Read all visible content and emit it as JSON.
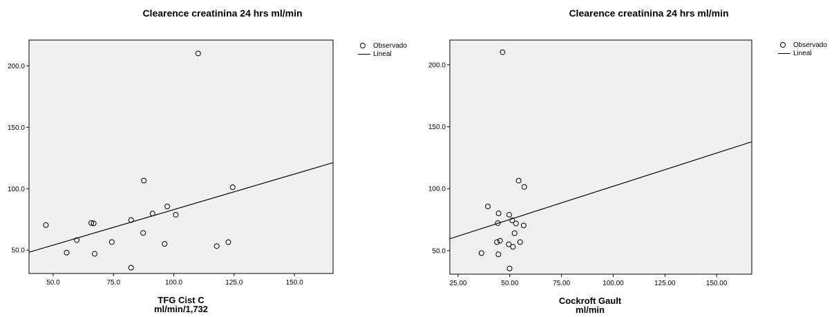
{
  "chart_data": [
    {
      "type": "scatter",
      "title": "Clearence  creatinina 24 hrs ml/min",
      "xlabel": [
        "TFG Cist C",
        "ml/min/1,732"
      ],
      "ylabel": "",
      "xlim": [
        40,
        166
      ],
      "ylim": [
        31,
        221
      ],
      "xticks": [
        50,
        75,
        100,
        125,
        150
      ],
      "xtick_labels": [
        "50.0",
        "75.0",
        "100.0",
        "125.0",
        "150.0"
      ],
      "yticks": [
        50,
        100,
        150,
        200
      ],
      "ytick_labels": [
        "50.0",
        "100.0",
        "150.0",
        "200.0"
      ],
      "grid": false,
      "legend": {
        "placement": "top-right-outside",
        "entries": [
          "Observado",
          "Lineal"
        ]
      },
      "series": [
        {
          "name": "Observado",
          "kind": "points",
          "x": [
            47,
            55.6,
            59.8,
            65.8,
            66.8,
            67.2,
            74.3,
            82.3,
            82.3,
            87.3,
            87.6,
            91.2,
            96.2,
            97.3,
            100.8,
            110.1,
            117.8,
            122.6,
            124.4
          ],
          "y": [
            70.4,
            48,
            58.2,
            72.1,
            71.8,
            47,
            56.6,
            74.5,
            35.7,
            64,
            106.6,
            79.8,
            55.1,
            85.6,
            78.8,
            210.1,
            53.3,
            56.5,
            101.2
          ]
        },
        {
          "name": "Lineal",
          "kind": "line",
          "x": [
            40,
            166
          ],
          "y": [
            48.3,
            121.2
          ]
        }
      ]
    },
    {
      "type": "scatter",
      "title": "Clearence  creatinina 24 hrs ml/min",
      "xlabel": [
        "Cockroft Gault",
        "ml/min"
      ],
      "ylabel": "",
      "xlim": [
        21,
        167
      ],
      "ylim": [
        31,
        220
      ],
      "xticks": [
        25,
        50,
        75,
        100,
        125,
        150
      ],
      "xtick_labels": [
        "25.00",
        "50.00",
        "75.00",
        "100.00",
        "125.00",
        "150.00"
      ],
      "yticks": [
        50,
        100,
        150,
        200
      ],
      "ytick_labels": [
        "50.0",
        "100.0",
        "150.0",
        "200.0"
      ],
      "grid": false,
      "legend": {
        "placement": "top-right-outside",
        "entries": [
          "Observado",
          "Lineal"
        ]
      },
      "series": [
        {
          "name": "Observado",
          "kind": "points",
          "x": [
            46.5,
            54.3,
            57,
            39.4,
            44.6,
            49.7,
            51.2,
            44.2,
            53,
            56.7,
            52.3,
            45.3,
            43.8,
            49.5,
            55,
            51.5,
            36.3,
            44.5,
            49.9
          ],
          "y": [
            210.2,
            106.5,
            101.4,
            85.7,
            80.1,
            79,
            74.4,
            72.2,
            71.9,
            70.3,
            64.1,
            58,
            56.9,
            55.1,
            56.9,
            53.1,
            48,
            47,
            35.6
          ]
        },
        {
          "name": "Lineal",
          "kind": "line",
          "x": [
            21,
            167
          ],
          "y": [
            59.6,
            137.9
          ]
        }
      ]
    }
  ]
}
